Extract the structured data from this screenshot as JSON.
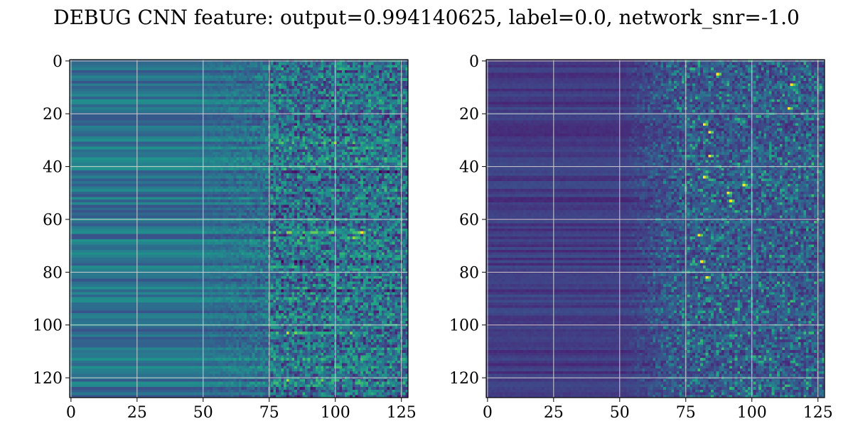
{
  "figure": {
    "title": "DEBUG CNN feature: output=0.994140625, label=0.0, network_snr=-1.0"
  },
  "chart_data": [
    {
      "type": "heatmap",
      "colormap": "viridis",
      "grid": true,
      "rows": 128,
      "cols": 128,
      "xlim": [
        0,
        128
      ],
      "ylim": [
        128,
        0
      ],
      "x_ticks": [
        0,
        25,
        50,
        75,
        100,
        125
      ],
      "y_ticks": [
        0,
        20,
        40,
        60,
        80,
        100,
        120
      ],
      "value_range": [
        0,
        1
      ],
      "background_level": 0.38,
      "noise_start_col": 75,
      "bright_rows": [
        31,
        65,
        67,
        103,
        121
      ],
      "dark_rows": [
        87,
        76,
        42
      ]
    },
    {
      "type": "heatmap",
      "colormap": "viridis",
      "grid": true,
      "rows": 128,
      "cols": 128,
      "xlim": [
        0,
        128
      ],
      "ylim": [
        128,
        0
      ],
      "x_ticks": [
        0,
        25,
        50,
        75,
        100,
        125
      ],
      "y_ticks": [
        0,
        20,
        40,
        60,
        80,
        100,
        120
      ],
      "value_range": [
        0,
        1
      ],
      "background_level": 0.1,
      "noise_start_col": 50,
      "hotspots": [
        [
          24,
          82
        ],
        [
          27,
          84
        ],
        [
          36,
          84
        ],
        [
          44,
          82
        ],
        [
          50,
          91
        ],
        [
          66,
          80
        ],
        [
          76,
          81
        ],
        [
          82,
          83
        ],
        [
          9,
          115
        ],
        [
          5,
          87
        ],
        [
          18,
          114
        ],
        [
          47,
          97
        ],
        [
          53,
          92
        ]
      ]
    }
  ]
}
